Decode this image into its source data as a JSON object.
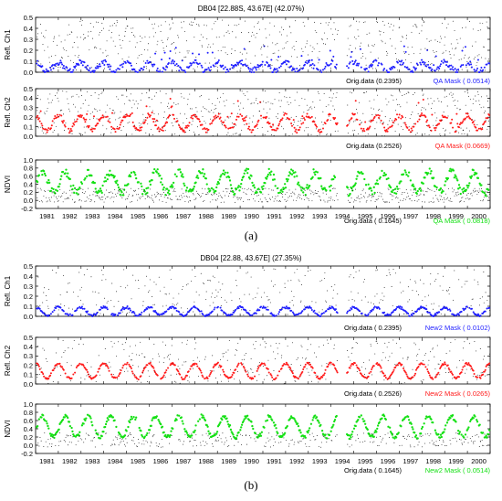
{
  "figure": {
    "sub_a_label": "(a)",
    "sub_b_label": "(b)"
  },
  "colors": {
    "ch1": "#1f1fff",
    "ch2": "#ff1a1a",
    "ndvi": "#14e014",
    "orig": "#000000"
  },
  "chart_data": [
    {
      "type": "scatter",
      "title": "DB04 [22.88S, 43.67E] (42.07%)",
      "panels": [
        {
          "ylabel": "Refl. Ch1",
          "yticks": [
            "0.0",
            "0.1",
            "0.2",
            "0.3",
            "0.4",
            "0.5"
          ],
          "ylim": [
            0.0,
            0.5
          ],
          "orig_label": "Orig.data (0.2395)",
          "mask_label": "QA Mask ( 0.0514)",
          "series": [
            {
              "name": "Orig.data",
              "rmse": 0.2395
            },
            {
              "name": "QA Mask",
              "rmse": 0.0514
            }
          ],
          "color_key": "ch1"
        },
        {
          "ylabel": "Refl. Ch2",
          "yticks": [
            "0.0",
            "0.1",
            "0.2",
            "0.3",
            "0.4",
            "0.5"
          ],
          "ylim": [
            0.0,
            0.5
          ],
          "orig_label": "Orig.data (0.2526)",
          "mask_label": "QA Mask (0.0669)",
          "series": [
            {
              "name": "Orig.data",
              "rmse": 0.2526
            },
            {
              "name": "QA Mask",
              "rmse": 0.0669
            }
          ],
          "color_key": "ch2"
        },
        {
          "ylabel": "NDVI",
          "yticks": [
            "-0.2",
            "0.0",
            "0.2",
            "0.4",
            "0.6",
            "0.8",
            "1.0"
          ],
          "ylim": [
            -0.2,
            1.0
          ],
          "orig_label": "Orig.data ( 0.1645)",
          "mask_label": "QA Mask ( 0.0818)",
          "series": [
            {
              "name": "Orig.data",
              "rmse": 0.1645
            },
            {
              "name": "QA Mask",
              "rmse": 0.0818
            }
          ],
          "color_key": "ndvi"
        }
      ],
      "x_ticks": [
        "1981",
        "1982",
        "1983",
        "1984",
        "1985",
        "1986",
        "1987",
        "1988",
        "1989",
        "1990",
        "1991",
        "1992",
        "1993",
        "1994",
        "1995",
        "1996",
        "1997",
        "1998",
        "1999",
        "2000"
      ],
      "xlim": [
        1981,
        2001
      ]
    },
    {
      "type": "scatter",
      "title": "DB04 [22.88, 43.67E] (27.35%)",
      "panels": [
        {
          "ylabel": "Refl. Ch1",
          "yticks": [
            "0.0",
            "0.1",
            "0.2",
            "0.3",
            "0.4",
            "0.5"
          ],
          "ylim": [
            0.0,
            0.5
          ],
          "orig_label": "Orig.data ( 0.2395)",
          "mask_label": "New2 Mask ( 0.0102)",
          "series": [
            {
              "name": "Orig.data",
              "rmse": 0.2395
            },
            {
              "name": "New2 Mask",
              "rmse": 0.0102
            }
          ],
          "color_key": "ch1"
        },
        {
          "ylabel": "Refl. Ch2",
          "yticks": [
            "0.0",
            "0.1",
            "0.2",
            "0.3",
            "0.4",
            "0.5"
          ],
          "ylim": [
            0.0,
            0.5
          ],
          "orig_label": "Orig.data ( 0.2526)",
          "mask_label": "New2 Mask ( 0.0265)",
          "series": [
            {
              "name": "Orig.data",
              "rmse": 0.2526
            },
            {
              "name": "New2 Mask",
              "rmse": 0.0265
            }
          ],
          "color_key": "ch2"
        },
        {
          "ylabel": "NDVI",
          "yticks": [
            "-0.2",
            "0.0",
            "0.2",
            "0.4",
            "0.6",
            "0.8",
            "1.0"
          ],
          "ylim": [
            -0.2,
            1.0
          ],
          "orig_label": "Orig.data ( 0.1645)",
          "mask_label": "New2 Mask ( 0.0514)",
          "series": [
            {
              "name": "Orig.data",
              "rmse": 0.1645
            },
            {
              "name": "New2 Mask",
              "rmse": 0.0514
            }
          ],
          "color_key": "ndvi"
        }
      ],
      "x_ticks": [
        "1981",
        "1982",
        "1983",
        "1984",
        "1985",
        "1986",
        "1987",
        "1988",
        "1989",
        "1990",
        "1991",
        "1992",
        "1993",
        "1994",
        "1995",
        "1996",
        "1997",
        "1998",
        "1999",
        "2000"
      ],
      "xlim": [
        1981,
        2001
      ]
    }
  ]
}
